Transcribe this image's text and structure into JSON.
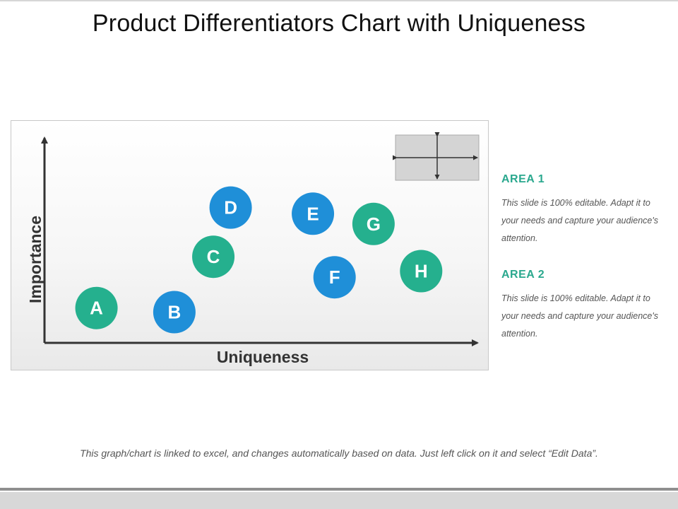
{
  "title": "Product Differentiators Chart with Uniqueness",
  "chart_data": {
    "type": "scatter",
    "xlabel": "Uniqueness",
    "ylabel": "Importance",
    "points": [
      {
        "label": "A",
        "x": 1.2,
        "y": 1.7,
        "color": "#25b08e"
      },
      {
        "label": "B",
        "x": 3.0,
        "y": 1.5,
        "color": "#1f8fd8"
      },
      {
        "label": "C",
        "x": 3.9,
        "y": 4.2,
        "color": "#25b08e"
      },
      {
        "label": "D",
        "x": 4.3,
        "y": 6.6,
        "color": "#1f8fd8"
      },
      {
        "label": "E",
        "x": 6.2,
        "y": 6.3,
        "color": "#1f8fd8"
      },
      {
        "label": "F",
        "x": 6.7,
        "y": 3.2,
        "color": "#1f8fd8"
      },
      {
        "label": "G",
        "x": 7.6,
        "y": 5.8,
        "color": "#25b08e"
      },
      {
        "label": "H",
        "x": 8.7,
        "y": 3.5,
        "color": "#25b08e"
      }
    ],
    "xlim": [
      0,
      10
    ],
    "ylim": [
      0,
      10
    ]
  },
  "areas": [
    {
      "title": "AREA 1",
      "text": "This slide is 100% editable. Adapt it to your needs and capture your audience's attention.",
      "color": "#2aa88e"
    },
    {
      "title": "AREA 2",
      "text": "This slide is 100% editable. Adapt it to your needs and capture your audience's attention.",
      "color": "#2aa88e"
    }
  ],
  "footer_note": "This graph/chart is linked to excel, and changes automatically based on data. Just left click on it and select “Edit Data”."
}
